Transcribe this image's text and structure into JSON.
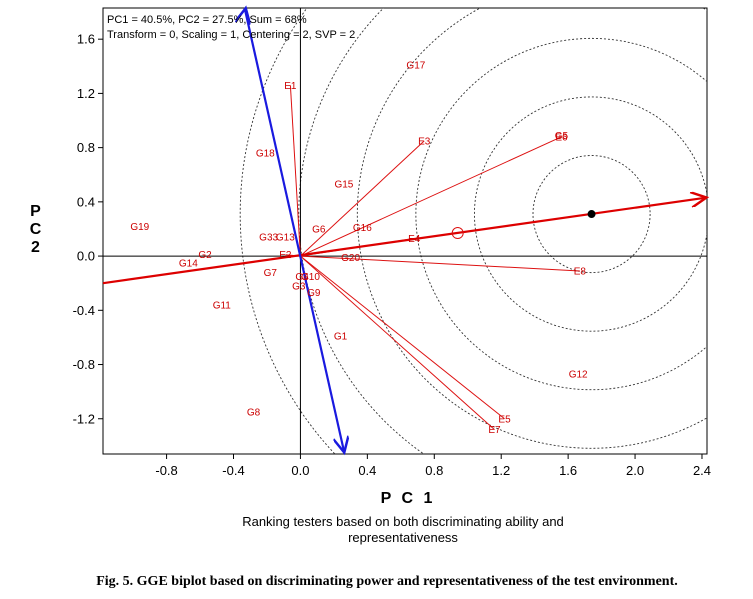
{
  "chart_data": {
    "type": "scatter",
    "subtype": "GGE biplot",
    "info_line1": "PC1 = 40.5%, PC2 = 27.5%, Sum = 68%",
    "info_line2": "Transform = 0, Scaling = 1, Centering = 2, SVP = 2",
    "xlabel": "P C 1",
    "ylabel_top": "P",
    "ylabel_mid": "C",
    "ylabel_bottom": "2",
    "subtitle_line1": "Ranking testers based on both discriminating ability and",
    "subtitle_line2": "representativeness",
    "xlim": [
      -1.18,
      2.43
    ],
    "ylim": [
      -1.46,
      1.83
    ],
    "x_ticks": [
      -0.8,
      -0.4,
      0.0,
      0.4,
      0.8,
      1.2,
      1.6,
      2.0,
      2.4
    ],
    "y_ticks": [
      -1.2,
      -0.8,
      -0.4,
      0.0,
      0.4,
      0.8,
      1.2,
      1.6
    ],
    "x_tick_labels": [
      "-0.8",
      "-0.4",
      "0.0",
      "0.4",
      "0.8",
      "1.2",
      "1.6",
      "2.0",
      "2.4"
    ],
    "y_tick_labels": [
      "-1.2",
      "-0.8",
      "-0.4",
      "0.0",
      "0.4",
      "0.8",
      "1.2",
      "1.6"
    ],
    "environments": [
      {
        "label": "E1",
        "x": -0.06,
        "y": 1.26
      },
      {
        "label": "E2",
        "x": -0.09,
        "y": 0.01
      },
      {
        "label": "E3",
        "x": 0.74,
        "y": 0.85
      },
      {
        "label": "E4",
        "x": 0.68,
        "y": 0.13
      },
      {
        "label": "E5",
        "x": 1.22,
        "y": -1.2
      },
      {
        "label": "E6",
        "x": 1.56,
        "y": 0.88
      },
      {
        "label": "E7",
        "x": 1.16,
        "y": -1.28
      },
      {
        "label": "E8",
        "x": 1.67,
        "y": -0.11
      }
    ],
    "genotypes": [
      {
        "label": "G1",
        "x": 0.24,
        "y": -0.59
      },
      {
        "label": "G2",
        "x": -0.57,
        "y": 0.01
      },
      {
        "label": "G3",
        "x": -0.01,
        "y": -0.22
      },
      {
        "label": "G4",
        "x": 0.01,
        "y": -0.15
      },
      {
        "label": "G5",
        "x": 1.56,
        "y": 0.89
      },
      {
        "label": "G6",
        "x": 0.11,
        "y": 0.2
      },
      {
        "label": "G7",
        "x": -0.18,
        "y": -0.12
      },
      {
        "label": "G8",
        "x": -0.28,
        "y": -1.15
      },
      {
        "label": "G9",
        "x": 0.08,
        "y": -0.27
      },
      {
        "label": "G10",
        "x": 0.06,
        "y": -0.15
      },
      {
        "label": "G11",
        "x": -0.47,
        "y": -0.36
      },
      {
        "label": "G12",
        "x": 1.66,
        "y": -0.87
      },
      {
        "label": "G13",
        "x": -0.09,
        "y": 0.14
      },
      {
        "label": "G14",
        "x": -0.67,
        "y": -0.05
      },
      {
        "label": "G15",
        "x": 0.26,
        "y": 0.53
      },
      {
        "label": "G16",
        "x": 0.37,
        "y": 0.21
      },
      {
        "label": "G17",
        "x": 0.69,
        "y": 1.41
      },
      {
        "label": "G18",
        "x": -0.21,
        "y": 0.76
      },
      {
        "label": "G19",
        "x": -0.96,
        "y": 0.22
      },
      {
        "label": "G20",
        "x": 0.3,
        "y": -0.01
      },
      {
        "label": "G33",
        "x": -0.19,
        "y": 0.14
      }
    ],
    "aec_abscissa": {
      "from": [
        -1.18,
        -0.2
      ],
      "to": [
        2.43,
        0.43
      ]
    },
    "aec_ordinate": {
      "from": [
        -0.33,
        1.84
      ],
      "to": [
        0.26,
        -1.46
      ]
    },
    "ideal_point": {
      "x": 1.74,
      "y": 0.31
    },
    "average_env_marker": {
      "x": 0.94,
      "y": 0.17
    },
    "concentric_radii": [
      0.35,
      0.7,
      1.05,
      1.4,
      1.75,
      2.1
    ]
  },
  "caption": "Fig. 5. GGE biplot based on discriminating power and representativeness of the test environment."
}
